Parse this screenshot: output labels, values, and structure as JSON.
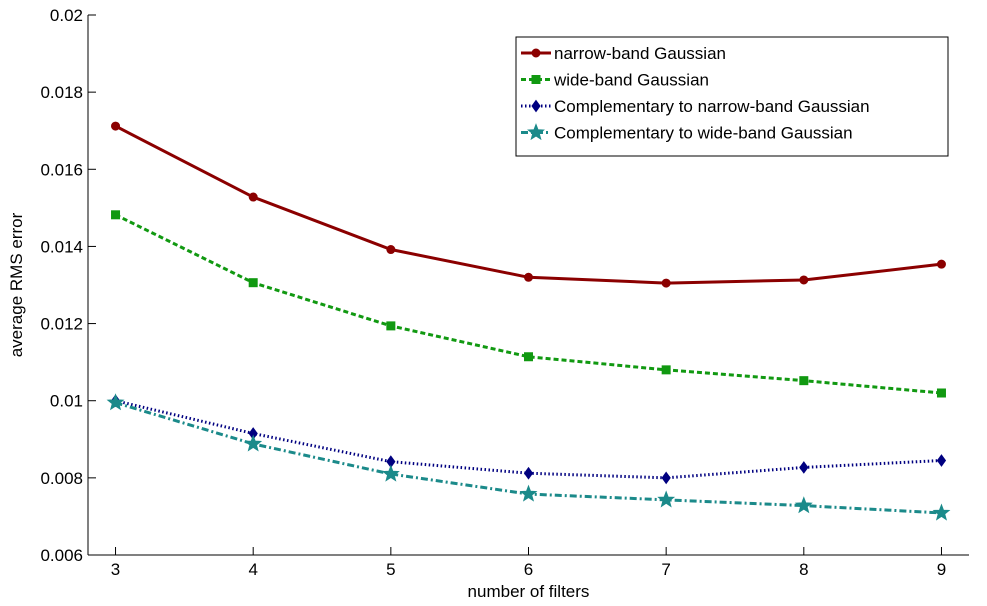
{
  "chart_data": {
    "type": "line",
    "title": "",
    "xlabel": "number of filters",
    "ylabel": "average RMS error",
    "x": [
      3,
      4,
      5,
      6,
      7,
      8,
      9
    ],
    "xlim": [
      2.8,
      9.2
    ],
    "ylim": [
      0.006,
      0.02
    ],
    "xticks": [
      "3",
      "4",
      "5",
      "6",
      "7",
      "8",
      "9"
    ],
    "yticks": [
      "0.006",
      "0.008",
      "0.01",
      "0.012",
      "0.014",
      "0.016",
      "0.018",
      "0.02"
    ],
    "grid": false,
    "legend_position": "top-right",
    "series": [
      {
        "name": "narrow-band Gaussian",
        "values": [
          0.01712,
          0.01528,
          0.01392,
          0.0132,
          0.01305,
          0.01313,
          0.01354
        ],
        "color": "#8b0000",
        "marker": "circle",
        "line_style": "solid"
      },
      {
        "name": "wide-band Gaussian",
        "values": [
          0.01482,
          0.01306,
          0.01194,
          0.01114,
          0.0108,
          0.01052,
          0.0102
        ],
        "color": "#119911",
        "marker": "square",
        "line_style": "dashed"
      },
      {
        "name": "Complementary to narrow-band Gaussian",
        "values": [
          0.01,
          0.00915,
          0.00842,
          0.00812,
          0.008,
          0.00827,
          0.00845
        ],
        "color": "#000080",
        "marker": "diamond",
        "line_style": "dotted"
      },
      {
        "name": "Complementary to wide-band Gaussian",
        "values": [
          0.00995,
          0.00888,
          0.0081,
          0.00758,
          0.00743,
          0.00728,
          0.00709
        ],
        "color": "#1b8a8a",
        "marker": "star",
        "line_style": "dashdot"
      }
    ]
  }
}
